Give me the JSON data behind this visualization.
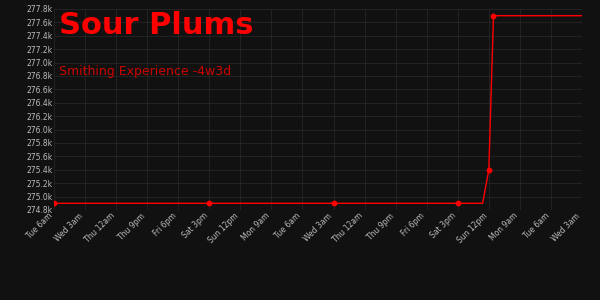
{
  "title": "Sour Plums",
  "subtitle": "Smithing Experience -4w3d",
  "title_color": "#ff0000",
  "subtitle_color": "#cc0000",
  "background_color": "#111111",
  "plot_bg_color": "#111111",
  "grid_color": "#2a2a2a",
  "line_color": "#ff0000",
  "tick_label_color": "#bbbbbb",
  "ylim": [
    274800,
    277800
  ],
  "ytick_step": 200,
  "x_labels": [
    "Tue 6am",
    "Wed 3am",
    "Thu 12am",
    "Thu 9pm",
    "Fri 6pm",
    "Sat 3pm",
    "Sun 12pm",
    "Mon 9am",
    "Tue 6am",
    "Wed 3am",
    "Thu 12am",
    "Thu 9pm",
    "Fri 6pm",
    "Sat 3pm",
    "Sun 12pm",
    "Mon 9am",
    "Tue 6am",
    "Wed 3am"
  ],
  "data_x": [
    0,
    1,
    2,
    3,
    4,
    5,
    6,
    7,
    8,
    9,
    10,
    11,
    12,
    13,
    13.8,
    14.0,
    14.15,
    15,
    16,
    17
  ],
  "data_y": [
    274900,
    274900,
    274900,
    274900,
    274900,
    274900,
    274900,
    274900,
    274900,
    274900,
    274900,
    274900,
    274900,
    274900,
    274900,
    275400,
    277700,
    277700,
    277700,
    277700
  ],
  "marker_x": [
    0,
    5,
    9,
    13,
    14.0,
    14.15
  ],
  "marker_y": [
    274900,
    274900,
    274900,
    274900,
    275400,
    277700
  ],
  "title_fontsize": 22,
  "subtitle_fontsize": 9
}
